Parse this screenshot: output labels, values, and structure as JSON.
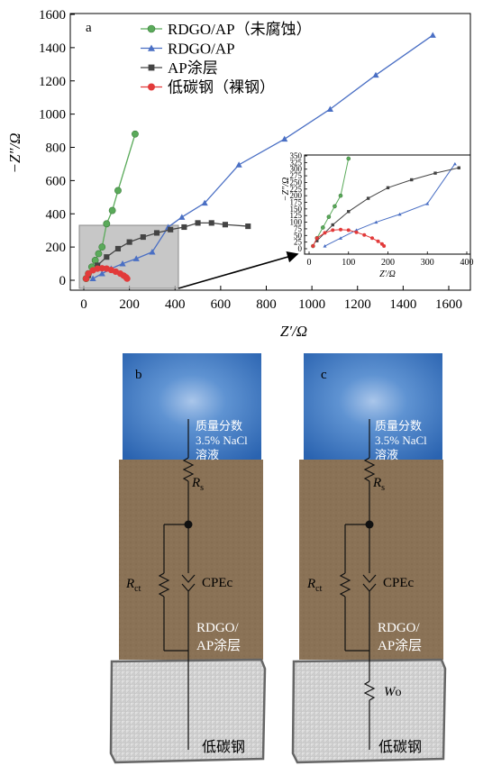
{
  "panel_labels": {
    "a": "a",
    "b": "b",
    "c": "c"
  },
  "chart_data": {
    "type": "scatter",
    "xlabel": "Z′/Ω",
    "ylabel": "−Z″/Ω",
    "xlim": [
      0,
      1650
    ],
    "ylim": [
      -30,
      1600
    ],
    "xticks": [
      "0",
      "200",
      "400",
      "600",
      "800",
      "1000",
      "1200",
      "1400",
      "1600"
    ],
    "yticks": [
      "0",
      "200",
      "400",
      "600",
      "800",
      "1000",
      "1200",
      "1400",
      "1600"
    ],
    "legend_position": "top-left",
    "series": [
      {
        "name": "RDGO/AP（未腐蚀）",
        "marker": "circle",
        "color": "#5aaa5a",
        "x": [
          10,
          20,
          35,
          50,
          65,
          80,
          100,
          125,
          150,
          225
        ],
        "y": [
          10,
          40,
          80,
          120,
          160,
          200,
          340,
          420,
          540,
          880
        ]
      },
      {
        "name": "RDGO/AP",
        "marker": "triangle",
        "color": "#4a6fc4",
        "x": [
          40,
          80,
          120,
          170,
          230,
          300,
          370,
          430,
          530,
          680,
          880,
          1080,
          1280,
          1530
        ],
        "y": [
          10,
          40,
          70,
          100,
          130,
          170,
          320,
          380,
          465,
          695,
          850,
          1030,
          1235,
          1475
        ]
      },
      {
        "name": "AP涂层",
        "marker": "square",
        "color": "#444444",
        "x": [
          20,
          60,
          100,
          150,
          200,
          260,
          320,
          380,
          440,
          500,
          560,
          620,
          720
        ],
        "y": [
          30,
          90,
          140,
          190,
          230,
          260,
          285,
          305,
          320,
          345,
          345,
          335,
          325
        ]
      },
      {
        "name": "低碳钢（裸钢）",
        "marker": "circle",
        "color": "#e23a3a",
        "x": [
          10,
          20,
          40,
          60,
          80,
          100,
          120,
          140,
          160,
          175,
          185,
          190
        ],
        "y": [
          10,
          40,
          60,
          70,
          72,
          70,
          62,
          52,
          40,
          28,
          18,
          10
        ]
      }
    ],
    "inset": {
      "xlabel": "Z′/Ω",
      "ylabel": "−Z″/Ω",
      "xlim": [
        0,
        400
      ],
      "ylim": [
        0,
        350
      ],
      "xticks": [
        "0",
        "100",
        "200",
        "300",
        "400"
      ],
      "yticks": [
        "0",
        "25",
        "50",
        "75",
        "100",
        "125",
        "150",
        "175",
        "200",
        "225",
        "250",
        "275",
        "300",
        "325",
        "350"
      ]
    }
  },
  "circuit_b": {
    "solution_label": [
      "质量分数",
      "3.5% NaCl",
      "溶液"
    ],
    "rs": "R",
    "rs_sub": "s",
    "rct": "R",
    "rct_sub": "ct",
    "cpe": "CPEc",
    "coating_label": [
      "RDGO/",
      "AP涂层"
    ],
    "steel_label": "低碳钢"
  },
  "circuit_c": {
    "solution_label": [
      "质量分数",
      "3.5% NaCl",
      "溶液"
    ],
    "rs": "R",
    "rs_sub": "s",
    "rct": "R",
    "rct_sub": "ct",
    "cpe": "CPEc",
    "coating_label": [
      "RDGO/",
      "AP涂层"
    ],
    "warburg": "W",
    "warburg_sub": "o",
    "steel_label": "低碳钢"
  },
  "colors": {
    "solution": "#3f79c2",
    "coating": "#8a7256",
    "steel": "#d9d9d9",
    "inset_box": "#b4b4b4"
  }
}
